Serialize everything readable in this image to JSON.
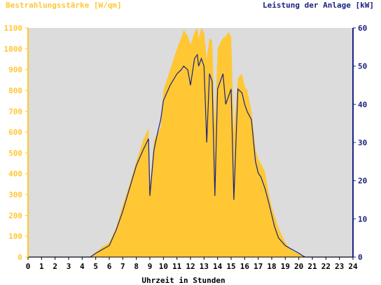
{
  "chart_data": {
    "type": "area",
    "ylabel_left": "Bestrahlungsstärke [W/qm]",
    "ylabel_right": "Leistung der Anlage [kW]",
    "xlabel": "Uhrzeit in Stunden",
    "xlim": [
      0,
      24
    ],
    "ylim_left": [
      0,
      1100
    ],
    "ylim_right": [
      0,
      60
    ],
    "x_ticks": [
      "0",
      "1",
      "2",
      "3",
      "4",
      "5",
      "6",
      "7",
      "8",
      "9",
      "10",
      "11",
      "12",
      "13",
      "14",
      "15",
      "16",
      "17",
      "18",
      "19",
      "20",
      "21",
      "22",
      "23",
      "24"
    ],
    "y_left_ticks": [
      "0",
      "100",
      "200",
      "300",
      "400",
      "500",
      "600",
      "700",
      "800",
      "900",
      "1000",
      "1100"
    ],
    "y_right_ticks": [
      "0",
      "10",
      "20",
      "30",
      "40",
      "50",
      "60"
    ],
    "grid": false,
    "colors": {
      "irradiance": "#ffc733",
      "power": "#1a237e",
      "plot_bg": "#dcdcdc",
      "left_axis": "#ffc733",
      "right_axis": "#1a237e"
    },
    "series": [
      {
        "name": "Bestrahlungsstärke [W/qm]",
        "axis": "left",
        "x": [
          0,
          4.6,
          5.0,
          5.5,
          6.0,
          6.5,
          7.0,
          7.5,
          8.0,
          8.5,
          8.9,
          9.0,
          9.1,
          9.3,
          9.6,
          9.8,
          10.0,
          10.5,
          11.0,
          11.3,
          11.5,
          11.8,
          12.0,
          12.3,
          12.5,
          12.6,
          12.8,
          13.0,
          13.2,
          13.4,
          13.6,
          13.8,
          14.0,
          14.2,
          14.4,
          14.6,
          14.8,
          15.0,
          15.2,
          15.5,
          15.8,
          16.0,
          16.2,
          16.5,
          16.8,
          17.0,
          17.2,
          17.5,
          17.8,
          18.0,
          18.2,
          18.5,
          19.0,
          19.5,
          20.0,
          20.3,
          20.5,
          24
        ],
        "y": [
          0,
          0,
          20,
          50,
          70,
          140,
          250,
          350,
          460,
          560,
          620,
          330,
          400,
          560,
          600,
          620,
          800,
          900,
          1000,
          1050,
          1090,
          1060,
          1020,
          1080,
          1100,
          1050,
          1100,
          1080,
          950,
          1050,
          1040,
          640,
          1000,
          1030,
          1050,
          1060,
          1080,
          1060,
          600,
          860,
          880,
          820,
          800,
          700,
          520,
          470,
          450,
          410,
          300,
          240,
          200,
          140,
          70,
          30,
          15,
          5,
          0,
          0
        ]
      },
      {
        "name": "Leistung der Anlage [kW]",
        "axis": "right",
        "x": [
          0,
          4.6,
          5.0,
          5.5,
          6.0,
          6.5,
          7.0,
          7.5,
          8.0,
          8.5,
          8.9,
          9.0,
          9.1,
          9.3,
          9.6,
          9.8,
          10.0,
          10.5,
          11.0,
          11.3,
          11.5,
          11.8,
          12.0,
          12.3,
          12.5,
          12.6,
          12.8,
          13.0,
          13.2,
          13.4,
          13.6,
          13.8,
          14.0,
          14.2,
          14.4,
          14.6,
          14.8,
          15.0,
          15.2,
          15.5,
          15.8,
          16.0,
          16.2,
          16.5,
          16.8,
          17.0,
          17.2,
          17.5,
          17.8,
          18.0,
          18.2,
          18.5,
          19.0,
          19.5,
          20.0,
          20.3,
          20.5,
          24
        ],
        "y": [
          0,
          0,
          1,
          2,
          3,
          7,
          12,
          18,
          24,
          28,
          31,
          16,
          20,
          28,
          33,
          36,
          41,
          45,
          48,
          49,
          50,
          49,
          45,
          52,
          53,
          50,
          52,
          50,
          30,
          48,
          46,
          16,
          44,
          46,
          48,
          40,
          42,
          44,
          15,
          44,
          43,
          40,
          38,
          36,
          25,
          22,
          21,
          18,
          14,
          11,
          8,
          5,
          3,
          2,
          1,
          0.3,
          0,
          0
        ]
      }
    ]
  }
}
